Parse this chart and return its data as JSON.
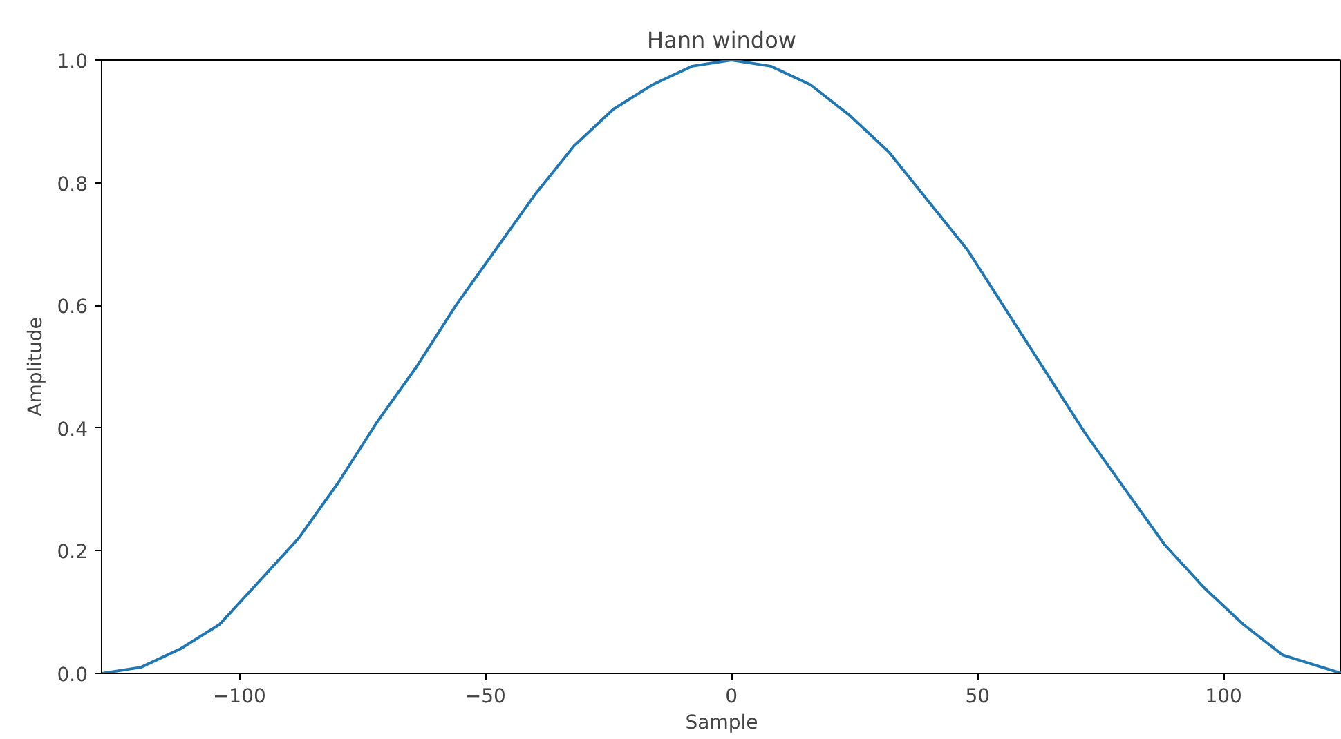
{
  "chart_data": {
    "type": "line",
    "title": "Hann window",
    "xlabel": "Sample",
    "ylabel": "Amplitude",
    "x": [
      -128,
      -120,
      -112,
      -104,
      -96,
      -88,
      -80,
      -72,
      -64,
      -56,
      -48,
      -40,
      -32,
      -24,
      -16,
      -8,
      0,
      8,
      16,
      24,
      32,
      40,
      48,
      56,
      64,
      72,
      80,
      88,
      96,
      104,
      112,
      120,
      124
    ],
    "series": [
      {
        "color": "#1f77b4",
        "values": [
          0,
          0.01,
          0.04,
          0.08,
          0.15,
          0.22,
          0.31,
          0.41,
          0.5,
          0.6,
          0.69,
          0.78,
          0.86,
          0.92,
          0.96,
          0.99,
          1.0,
          0.99,
          0.96,
          0.91,
          0.85,
          0.77,
          0.69,
          0.59,
          0.49,
          0.39,
          0.3,
          0.21,
          0.14,
          0.08,
          0.03,
          0.01,
          0.0
        ]
      }
    ],
    "xlim": [
      -128,
      124
    ],
    "ylim": [
      0,
      1
    ],
    "xticks": [
      {
        "value": -100,
        "label": "−100"
      },
      {
        "value": -50,
        "label": "−50"
      },
      0,
      50,
      100
    ],
    "yticks": [
      {
        "value": 0,
        "label": "0.0"
      },
      {
        "value": 0.2,
        "label": "0.2"
      },
      {
        "value": 0.4,
        "label": "0.4"
      },
      {
        "value": 0.6,
        "label": "0.6"
      },
      {
        "value": 0.8,
        "label": "0.8"
      },
      {
        "value": 1,
        "label": "1.0"
      }
    ],
    "grid": false,
    "line_style": "solid"
  }
}
